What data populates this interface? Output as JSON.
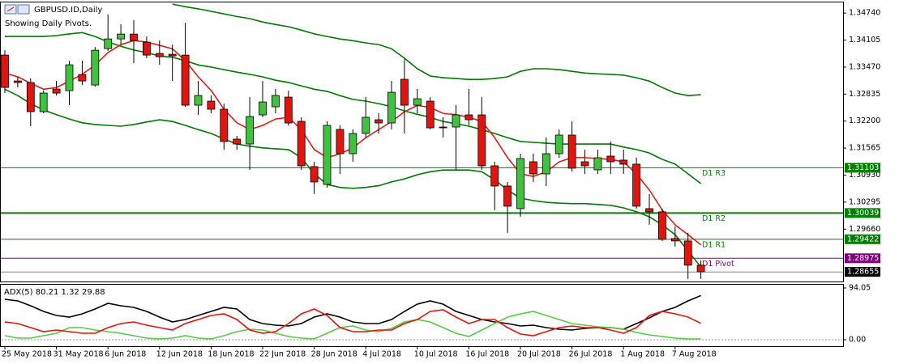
{
  "chart_data": [
    {
      "type": "candlestick",
      "title": "GBPUSD.ID,Daily",
      "subtitle": "Showing Daily Pivots.",
      "categories": [
        "25 May 2018",
        null,
        null,
        null,
        "31 May 2018",
        null,
        null,
        null,
        "6 Jun 2018",
        null,
        null,
        null,
        "12 Jun 2018",
        null,
        null,
        null,
        "18 Jun 2018",
        null,
        null,
        null,
        "22 Jun 2018",
        null,
        null,
        null,
        "28 Jun 2018",
        null,
        null,
        null,
        "4 Jul 2018",
        null,
        null,
        null,
        "10 Jul 2018",
        null,
        null,
        null,
        "16 Jul 2018",
        null,
        null,
        null,
        "20 Jul 2018",
        null,
        null,
        null,
        "26 Jul 2018",
        null,
        null,
        null,
        "1 Aug 2018",
        null,
        null,
        null,
        "7 Aug 2018",
        null,
        null
      ],
      "open": [
        1.33752,
        1.33144,
        1.33106,
        1.32422,
        1.32954,
        1.32916,
        1.33296,
        1.33049,
        1.33904,
        1.34132,
        1.34246,
        1.34056,
        1.3379,
        1.33771,
        1.33752,
        1.32574,
        1.32669,
        1.32479,
        1.31776,
        1.31662,
        1.32346,
        1.32536,
        1.32764,
        1.32194,
        1.3113,
        1.30712,
        1.32004,
        1.31434,
        1.31909,
        1.32232,
        1.32156,
        1.33182,
        1.32574,
        1.32669,
        1.32061,
        1.32061,
        1.32346,
        1.32346,
        1.31149,
        1.30674,
        1.30142,
        1.31244,
        1.30959,
        1.31434,
        1.31871,
        1.31244,
        1.31054,
        1.31377,
        1.31282,
        1.31187,
        1.30142,
        1.30066,
        1.29439,
        1.29382,
        1.28812
      ],
      "high": [
        1.33866,
        1.33239,
        1.33201,
        1.32916,
        1.33144,
        1.33619,
        1.33619,
        1.33942,
        1.34702,
        1.34474,
        1.34569,
        1.34189,
        1.34094,
        1.33999,
        1.34512,
        1.33144,
        1.32802,
        1.32612,
        1.31852,
        1.32764,
        1.33144,
        1.32954,
        1.32916,
        1.32289,
        1.31244,
        1.32194,
        1.32099,
        1.32004,
        1.32764,
        1.32384,
        1.33144,
        1.33657,
        1.32954,
        1.32764,
        1.32289,
        1.32574,
        1.32954,
        1.32764,
        1.31244,
        1.30769,
        1.31434,
        1.31434,
        1.31814,
        1.32004,
        1.32194,
        1.31529,
        1.31529,
        1.31719,
        1.31529,
        1.31339,
        1.30484,
        1.30142,
        1.29724,
        1.29572,
        1.28926
      ],
      "low": [
        1.32859,
        1.32992,
        1.3208,
        1.32384,
        1.32802,
        1.32574,
        1.33049,
        1.33011,
        1.33847,
        1.33999,
        1.33562,
        1.33676,
        1.33524,
        1.33144,
        1.32536,
        1.32346,
        1.32384,
        1.31529,
        1.31529,
        1.31054,
        1.32289,
        1.32384,
        1.32099,
        1.31054,
        1.30484,
        1.30636,
        1.30959,
        1.31244,
        1.31814,
        1.31909,
        1.32004,
        1.31909,
        1.32384,
        1.32004,
        1.31814,
        1.31054,
        1.32099,
        1.31054,
        1.30104,
        1.29572,
        1.29952,
        1.30769,
        1.30674,
        1.31339,
        1.31016,
        1.30959,
        1.30959,
        1.30959,
        1.30959,
        1.30142,
        1.29762,
        1.29382,
        1.29249,
        1.28489,
        1.28489
      ],
      "close": [
        1.32992,
        1.33106,
        1.32422,
        1.32859,
        1.32859,
        1.33524,
        1.33144,
        1.33866,
        1.34132,
        1.34246,
        1.34094,
        1.33752,
        1.33714,
        1.33733,
        1.32574,
        1.32802,
        1.32479,
        1.31719,
        1.31662,
        1.32308,
        1.3265,
        1.32802,
        1.32156,
        1.31149,
        1.30769,
        1.32099,
        1.31434,
        1.31909,
        1.32289,
        1.32156,
        1.32878,
        1.32574,
        1.32726,
        1.32042,
        1.32042,
        1.32346,
        1.32232,
        1.31149,
        1.30674,
        1.30199,
        1.3132,
        1.30959,
        1.31434,
        1.31871,
        1.31092,
        1.31149,
        1.31339,
        1.31244,
        1.31187,
        1.30199,
        1.30066,
        1.2942,
        1.29382,
        1.28812,
        1.28655
      ],
      "up_color": "#3cc43c",
      "down_color": "#e8120c",
      "indicators": [
        {
          "color": "#007a00",
          "values": [
            null,
            null,
            null,
            null,
            null,
            null,
            null,
            null,
            null,
            null,
            null,
            null,
            null,
            1.3495,
            1.3489,
            1.3484,
            1.3478,
            1.3472,
            1.3466,
            1.3461,
            1.3453,
            1.3447,
            1.3442,
            1.3434,
            1.3425,
            1.3419,
            1.3413,
            1.3409,
            1.3404,
            1.34,
            1.339,
            1.3368,
            1.3343,
            1.3326,
            1.3322,
            1.332,
            1.3318,
            1.3318,
            1.332,
            1.3324,
            1.3337,
            1.3343,
            1.3343,
            1.3341,
            1.3337,
            1.3333,
            1.3331,
            1.333,
            1.3328,
            1.3322,
            1.3314,
            1.3299,
            1.3286,
            1.328,
            1.3282
          ]
        },
        {
          "color": "#007a00",
          "values": [
            1.3419,
            1.3419,
            1.3419,
            1.3419,
            1.3421,
            1.3425,
            1.3428,
            1.3419,
            1.3406,
            1.3396,
            1.3387,
            1.3381,
            1.3373,
            1.337,
            1.3362,
            1.3352,
            1.3347,
            1.3341,
            1.3335,
            1.333,
            1.3324,
            1.3316,
            1.3311,
            1.3303,
            1.3295,
            1.329,
            1.328,
            1.3271,
            1.3267,
            1.3261,
            1.3254,
            1.3244,
            1.3236,
            1.3229,
            1.3219,
            1.3214,
            1.3208,
            1.32,
            1.3191,
            1.3181,
            1.3172,
            1.317,
            1.3168,
            1.3166,
            1.3166,
            1.3166,
            1.3166,
            1.3166,
            1.3159,
            1.3153,
            1.3145,
            1.313,
            1.3119,
            1.3096,
            1.3073
          ]
        },
        {
          "color": "#007a00",
          "values": [
            1.3295,
            1.328,
            1.3261,
            1.3246,
            1.3235,
            1.3225,
            1.3216,
            1.3212,
            1.321,
            1.3208,
            1.3212,
            1.3218,
            1.3223,
            1.3219,
            1.321,
            1.32,
            1.3191,
            1.3178,
            1.3166,
            1.3161,
            1.3157,
            1.3155,
            1.3153,
            1.3134,
            1.3096,
            1.3071,
            1.3064,
            1.3062,
            1.3064,
            1.3068,
            1.3077,
            1.3084,
            1.3094,
            1.3101,
            1.3105,
            1.3105,
            1.3105,
            1.3101,
            1.3082,
            1.3058,
            1.3039,
            1.3033,
            1.3029,
            1.3027,
            1.3026,
            1.3026,
            1.3024,
            1.3022,
            1.3016,
            1.3007,
            1.2995,
            1.2976,
            1.2953,
            1.2915,
            1.2877
          ]
        },
        {
          "color": "#e8120c",
          "values": [
            1.3333,
            1.3324,
            1.3309,
            1.3295,
            1.3299,
            1.3314,
            1.333,
            1.3352,
            1.3381,
            1.34,
            1.3409,
            1.3406,
            1.3398,
            1.339,
            1.3362,
            1.3324,
            1.3292,
            1.3248,
            1.3216,
            1.32,
            1.321,
            1.3225,
            1.3229,
            1.32,
            1.3153,
            1.3134,
            1.3143,
            1.3157,
            1.3181,
            1.32,
            1.3219,
            1.3242,
            1.3257,
            1.3252,
            1.3238,
            1.3235,
            1.3229,
            1.3219,
            1.3181,
            1.3134,
            1.3096,
            1.309,
            1.3101,
            1.3124,
            1.3134,
            1.3134,
            1.3132,
            1.313,
            1.3124,
            1.3096,
            1.3058,
            1.3011,
            1.2976,
            1.2953,
            1.2929
          ]
        }
      ],
      "levels": [
        {
          "name": "D1 R3",
          "value": 1.31103,
          "label": "1.31103",
          "color": "#008000",
          "width": 1
        },
        {
          "name": "D1 R2",
          "value": 1.30039,
          "label": "1.30039",
          "color": "#008000",
          "width": 2
        },
        {
          "name": "D1 R1",
          "value": 1.29422,
          "label": "1.29422",
          "color": "#008000",
          "width": 1
        },
        {
          "name": "D1 Pivot",
          "value": 1.28975,
          "label": "1.28975",
          "color": "#800080",
          "width": 1
        }
      ],
      "last_price": {
        "value": 1.28655,
        "label": "1.28655"
      },
      "ylim": [
        1.2841,
        1.3499
      ],
      "yticks": [
        {
          "value": 1.3474,
          "label": "1.34740"
        },
        {
          "value": 1.34105,
          "label": "1.34105"
        },
        {
          "value": 1.3347,
          "label": "1.33470"
        },
        {
          "value": 1.32835,
          "label": "1.32835"
        },
        {
          "value": 1.322,
          "label": "1.32200"
        },
        {
          "value": 1.31565,
          "label": "1.31565"
        },
        {
          "value": 1.3093,
          "label": "1.30930"
        },
        {
          "value": 1.30295,
          "label": "1.30295"
        },
        {
          "value": 1.2966,
          "label": "1.29660"
        }
      ]
    },
    {
      "type": "line",
      "title": "ADX(5) 80.21 1.32 29.88",
      "ylim": [
        0,
        94.05
      ],
      "yticks": [
        94.05,
        {
          "value": 0,
          "label": "0.00"
        }
      ],
      "series": [
        {
          "color": "#000000",
          "values": [
            73.5,
            70.5,
            61.7,
            51.4,
            44.1,
            41.1,
            47.0,
            55.8,
            66.1,
            61.7,
            58.8,
            51.4,
            41.1,
            32.3,
            36.7,
            44.1,
            51.4,
            58.8,
            55.8,
            36.7,
            29.4,
            26.4,
            25.0,
            29.4,
            41.1,
            47.0,
            41.1,
            32.3,
            29.4,
            29.4,
            36.7,
            51.4,
            64.7,
            70.5,
            64.7,
            51.4,
            44.1,
            36.7,
            32.3,
            29.4,
            25.0,
            26.4,
            22.0,
            19.1,
            17.6,
            20.6,
            22.0,
            22.0,
            19.1,
            29.4,
            39.7,
            51.4,
            58.8,
            70.5,
            80.21
          ]
        },
        {
          "color": "#55cc44",
          "values": [
            7.3,
            2.9,
            2.9,
            7.3,
            11.8,
            22.0,
            22.0,
            17.6,
            14.7,
            11.8,
            7.3,
            2.9,
            1.5,
            2.9,
            7.3,
            2.9,
            1.5,
            7.3,
            14.7,
            19.1,
            17.6,
            11.8,
            5.9,
            2.9,
            1.5,
            11.8,
            22.0,
            25.0,
            17.6,
            14.7,
            20.6,
            32.3,
            36.7,
            32.3,
            22.0,
            11.8,
            5.9,
            17.6,
            29.4,
            41.1,
            47.0,
            51.4,
            44.1,
            36.7,
            29.4,
            26.4,
            23.5,
            22.0,
            19.1,
            13.2,
            8.8,
            5.9,
            2.9,
            1.5,
            1.32
          ]
        },
        {
          "color": "#e8120c",
          "values": [
            32.3,
            29.4,
            22.0,
            14.7,
            17.6,
            14.7,
            11.8,
            11.8,
            22.0,
            29.4,
            32.3,
            26.4,
            22.0,
            17.6,
            29.4,
            36.7,
            44.1,
            47.0,
            36.7,
            17.6,
            11.8,
            14.7,
            29.4,
            47.0,
            55.8,
            44.1,
            22.0,
            14.7,
            14.7,
            17.6,
            17.6,
            29.4,
            36.7,
            51.4,
            54.4,
            41.1,
            29.4,
            36.7,
            36.7,
            22.0,
            10.3,
            7.3,
            14.7,
            22.0,
            25.0,
            22.0,
            22.0,
            17.6,
            11.8,
            22.0,
            44.1,
            51.4,
            47.0,
            41.1,
            29.88
          ]
        }
      ]
    }
  ]
}
